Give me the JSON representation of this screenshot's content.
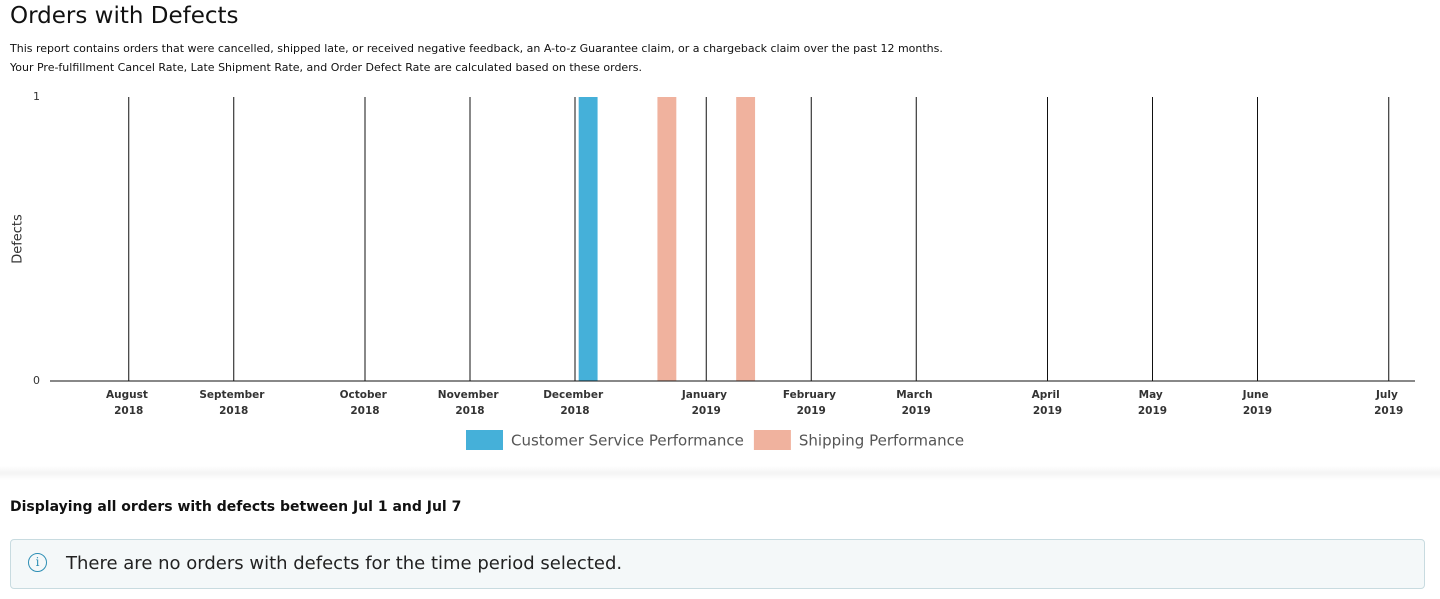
{
  "header": {
    "title": "Orders with Defects",
    "description": [
      "This report contains orders that were cancelled, shipped late, or received negative feedback, an A-to-z Guarantee claim, or a chargeback claim over the past 12 months.",
      "Your Pre-fulfillment Cancel Rate, Late Shipment Rate, and Order Defect Rate are calculated based on these orders."
    ]
  },
  "chart_data": {
    "type": "bar",
    "y_label": "Defects",
    "xlim": [
      -3,
      49
    ],
    "xticks": [
      {
        "value": 0,
        "label": "August 2018"
      },
      {
        "value": 4,
        "label": "September 2018"
      },
      {
        "value": 9,
        "label": "October 2018"
      },
      {
        "value": 13,
        "label": "November 2018"
      },
      {
        "value": 17,
        "label": "December 2018"
      },
      {
        "value": 22,
        "label": "January 2019"
      },
      {
        "value": 26,
        "label": "February 2019"
      },
      {
        "value": 30,
        "label": "March 2019"
      },
      {
        "value": 35,
        "label": "April 2019"
      },
      {
        "value": 39,
        "label": "May 2019"
      },
      {
        "value": 43,
        "label": "June 2019"
      },
      {
        "value": 48,
        "label": "July 2019"
      }
    ],
    "ylim": [
      0,
      1
    ],
    "yticks": [
      0,
      1
    ],
    "series": [
      {
        "name": "Customer Service Performance",
        "color": "#45b0d9",
        "x": [
          17.5
        ],
        "values": [
          1
        ]
      },
      {
        "name": "Shipping Performance",
        "color": "#f0b29e",
        "x": [
          20.5,
          23.5
        ],
        "values": [
          1,
          1
        ]
      }
    ]
  },
  "details": {
    "heading": "Displaying all orders with defects between Jul 1 and Jul 7",
    "notice": "There are no orders with defects for the time period selected."
  }
}
